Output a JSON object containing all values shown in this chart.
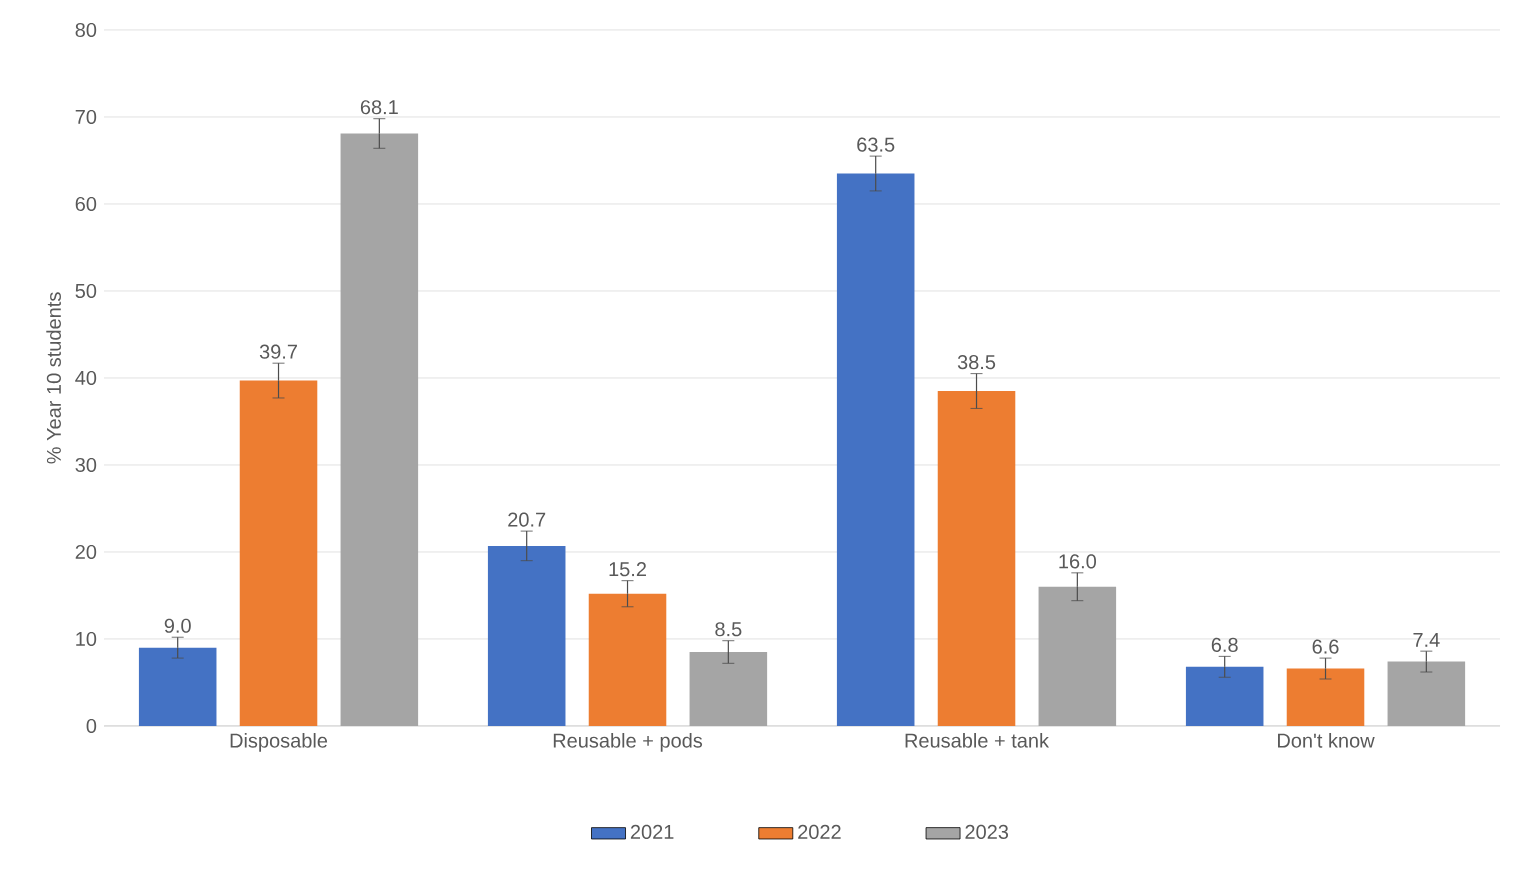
{
  "chart_data": {
    "type": "bar",
    "ylabel": "% Year 10 students",
    "categories": [
      "Disposable",
      "Reusable + pods",
      "Reusable + tank",
      "Don't know"
    ],
    "series": [
      {
        "name": "2021",
        "color": "#4472c4",
        "values": [
          9.0,
          20.7,
          63.5,
          6.8
        ],
        "value_labels": [
          "9.0",
          "20.7",
          "63.5",
          "6.8"
        ],
        "errors": [
          1.2,
          1.7,
          2.0,
          1.2
        ]
      },
      {
        "name": "2022",
        "color": "#ed7d31",
        "values": [
          39.7,
          15.2,
          38.5,
          6.6
        ],
        "value_labels": [
          "39.7",
          "15.2",
          "38.5",
          "6.6"
        ],
        "errors": [
          2.0,
          1.5,
          2.0,
          1.2
        ]
      },
      {
        "name": "2023",
        "color": "#a5a5a5",
        "values": [
          68.1,
          8.5,
          16.0,
          7.4
        ],
        "value_labels": [
          "68.1",
          "8.5",
          "16.0",
          "7.4"
        ],
        "errors": [
          1.7,
          1.3,
          1.6,
          1.2
        ]
      }
    ],
    "ylim": [
      0,
      80
    ],
    "yticks": [
      0,
      10,
      20,
      30,
      40,
      50,
      60,
      70,
      80
    ],
    "grid": "y",
    "legend": "bottom"
  }
}
